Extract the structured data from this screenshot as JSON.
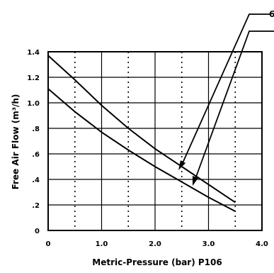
{
  "chart_data": {
    "type": "line",
    "xlabel": "Metric-Pressure (bar) P106",
    "ylabel": "Free Air Flow (m³/h)",
    "xlim": [
      0,
      4.0
    ],
    "ylim": [
      0,
      1.4
    ],
    "x_ticks": [
      "0",
      "1.0",
      "2.0",
      "3.0",
      "4.0"
    ],
    "y_ticks": [
      "0",
      ".2",
      ".4",
      ".6",
      ".8",
      "1.0",
      "1.2",
      "1.4"
    ],
    "grid": true,
    "series": [
      {
        "name": "6",
        "x": [
          0,
          0.5,
          1.0,
          1.5,
          2.0,
          2.5,
          3.0,
          3.5
        ],
        "y": [
          1.37,
          1.18,
          0.98,
          0.8,
          0.64,
          0.5,
          0.36,
          0.22
        ]
      },
      {
        "name": "",
        "x": [
          0,
          0.5,
          1.0,
          1.5,
          2.0,
          2.5,
          3.0,
          3.5
        ],
        "y": [
          1.11,
          0.93,
          0.77,
          0.63,
          0.5,
          0.38,
          0.26,
          0.15
        ]
      }
    ]
  }
}
